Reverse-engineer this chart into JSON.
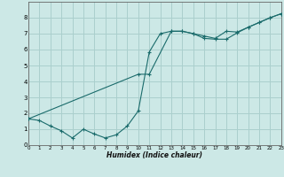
{
  "xlabel": "Humidex (Indice chaleur)",
  "bg_color": "#cce8e6",
  "grid_color": "#aacfcd",
  "line_color": "#1a6b6b",
  "line1_x": [
    0,
    1,
    2,
    3,
    4,
    5,
    6,
    7,
    8,
    9,
    10,
    11,
    12,
    13,
    14,
    15,
    16,
    17,
    18,
    19,
    20,
    21,
    22,
    23
  ],
  "line1_y": [
    1.65,
    1.55,
    1.2,
    0.9,
    0.45,
    1.0,
    0.7,
    0.45,
    0.65,
    1.2,
    2.15,
    5.85,
    7.0,
    7.15,
    7.15,
    7.0,
    6.85,
    6.7,
    7.15,
    7.1,
    7.4,
    7.7,
    8.0,
    8.25
  ],
  "line2_x": [
    0,
    10,
    11,
    13,
    14,
    15,
    16,
    17,
    18,
    19,
    20,
    21,
    22,
    23
  ],
  "line2_y": [
    1.65,
    4.45,
    4.45,
    7.15,
    7.15,
    7.0,
    6.7,
    6.65,
    6.65,
    7.05,
    7.4,
    7.7,
    8.0,
    8.25
  ],
  "xlim": [
    0,
    23
  ],
  "ylim": [
    0,
    9
  ],
  "yticks": [
    0,
    1,
    2,
    3,
    4,
    5,
    6,
    7,
    8
  ],
  "xticks": [
    0,
    1,
    2,
    3,
    4,
    5,
    6,
    7,
    8,
    9,
    10,
    11,
    12,
    13,
    14,
    15,
    16,
    17,
    18,
    19,
    20,
    21,
    22,
    23
  ]
}
